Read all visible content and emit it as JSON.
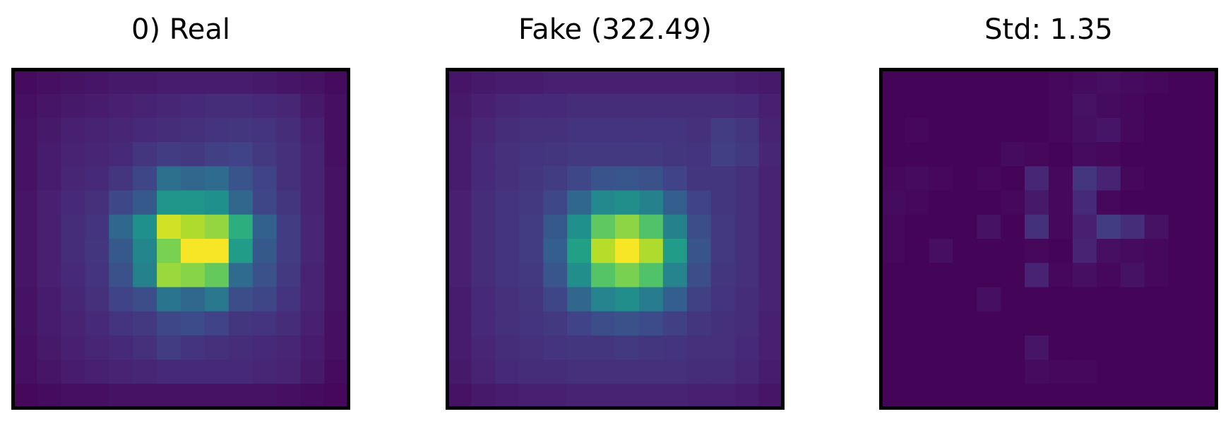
{
  "colors": {
    "colormap": "viridis",
    "frame": "#000000",
    "background": "#ffffff"
  },
  "chart_data": [
    {
      "type": "heatmap",
      "title": "0) Real",
      "colormap": "viridis",
      "vmin": 0,
      "vmax": 1,
      "grid": false,
      "values": [
        [
          0.03,
          0.04,
          0.05,
          0.06,
          0.07,
          0.07,
          0.08,
          0.08,
          0.08,
          0.08,
          0.07,
          0.06,
          0.05,
          0.03
        ],
        [
          0.04,
          0.06,
          0.07,
          0.08,
          0.09,
          0.1,
          0.11,
          0.12,
          0.13,
          0.13,
          0.12,
          0.11,
          0.07,
          0.04
        ],
        [
          0.05,
          0.07,
          0.09,
          0.1,
          0.11,
          0.12,
          0.13,
          0.14,
          0.15,
          0.16,
          0.15,
          0.13,
          0.09,
          0.04
        ],
        [
          0.05,
          0.08,
          0.1,
          0.11,
          0.12,
          0.16,
          0.18,
          0.17,
          0.19,
          0.2,
          0.17,
          0.14,
          0.1,
          0.04
        ],
        [
          0.05,
          0.08,
          0.11,
          0.12,
          0.16,
          0.21,
          0.37,
          0.33,
          0.35,
          0.26,
          0.2,
          0.14,
          0.1,
          0.05
        ],
        [
          0.06,
          0.09,
          0.12,
          0.14,
          0.22,
          0.28,
          0.52,
          0.52,
          0.5,
          0.33,
          0.21,
          0.16,
          0.1,
          0.05
        ],
        [
          0.06,
          0.09,
          0.13,
          0.15,
          0.34,
          0.5,
          0.93,
          0.88,
          0.84,
          0.63,
          0.31,
          0.18,
          0.11,
          0.05
        ],
        [
          0.06,
          0.09,
          0.13,
          0.16,
          0.28,
          0.46,
          0.8,
          0.99,
          0.99,
          0.55,
          0.28,
          0.18,
          0.11,
          0.05
        ],
        [
          0.06,
          0.09,
          0.12,
          0.15,
          0.25,
          0.44,
          0.85,
          0.82,
          0.76,
          0.35,
          0.25,
          0.17,
          0.1,
          0.05
        ],
        [
          0.05,
          0.08,
          0.11,
          0.14,
          0.2,
          0.24,
          0.39,
          0.34,
          0.4,
          0.24,
          0.21,
          0.15,
          0.1,
          0.05
        ],
        [
          0.05,
          0.08,
          0.1,
          0.12,
          0.15,
          0.17,
          0.22,
          0.23,
          0.2,
          0.16,
          0.15,
          0.13,
          0.09,
          0.04
        ],
        [
          0.04,
          0.07,
          0.09,
          0.11,
          0.12,
          0.14,
          0.18,
          0.15,
          0.14,
          0.13,
          0.12,
          0.11,
          0.08,
          0.04
        ],
        [
          0.04,
          0.06,
          0.08,
          0.09,
          0.1,
          0.11,
          0.12,
          0.12,
          0.12,
          0.12,
          0.11,
          0.1,
          0.07,
          0.03
        ],
        [
          0.02,
          0.03,
          0.04,
          0.04,
          0.05,
          0.05,
          0.05,
          0.05,
          0.05,
          0.05,
          0.05,
          0.04,
          0.03,
          0.02
        ]
      ]
    },
    {
      "type": "heatmap",
      "title": "Fake (322.49)",
      "colormap": "viridis",
      "vmin": 0,
      "vmax": 1,
      "grid": false,
      "values": [
        [
          0.06,
          0.07,
          0.08,
          0.08,
          0.09,
          0.09,
          0.09,
          0.09,
          0.09,
          0.09,
          0.09,
          0.09,
          0.08,
          0.07
        ],
        [
          0.07,
          0.09,
          0.11,
          0.12,
          0.12,
          0.13,
          0.13,
          0.13,
          0.13,
          0.13,
          0.13,
          0.13,
          0.12,
          0.09
        ],
        [
          0.08,
          0.11,
          0.13,
          0.14,
          0.14,
          0.15,
          0.15,
          0.15,
          0.15,
          0.15,
          0.14,
          0.18,
          0.16,
          0.1
        ],
        [
          0.08,
          0.12,
          0.14,
          0.15,
          0.16,
          0.17,
          0.17,
          0.17,
          0.17,
          0.16,
          0.15,
          0.19,
          0.17,
          0.11
        ],
        [
          0.08,
          0.12,
          0.14,
          0.16,
          0.18,
          0.22,
          0.26,
          0.27,
          0.25,
          0.2,
          0.16,
          0.16,
          0.14,
          0.1
        ],
        [
          0.09,
          0.13,
          0.15,
          0.17,
          0.22,
          0.34,
          0.47,
          0.49,
          0.44,
          0.3,
          0.2,
          0.16,
          0.14,
          0.1
        ],
        [
          0.09,
          0.13,
          0.15,
          0.18,
          0.28,
          0.5,
          0.75,
          0.83,
          0.72,
          0.44,
          0.24,
          0.17,
          0.14,
          0.1
        ],
        [
          0.09,
          0.13,
          0.15,
          0.18,
          0.3,
          0.57,
          0.89,
          0.99,
          0.88,
          0.55,
          0.26,
          0.17,
          0.14,
          0.1
        ],
        [
          0.09,
          0.13,
          0.15,
          0.17,
          0.27,
          0.49,
          0.73,
          0.8,
          0.72,
          0.45,
          0.24,
          0.16,
          0.14,
          0.1
        ],
        [
          0.08,
          0.12,
          0.14,
          0.16,
          0.21,
          0.33,
          0.45,
          0.49,
          0.42,
          0.3,
          0.19,
          0.15,
          0.13,
          0.1
        ],
        [
          0.08,
          0.12,
          0.14,
          0.15,
          0.17,
          0.2,
          0.24,
          0.25,
          0.23,
          0.19,
          0.16,
          0.14,
          0.13,
          0.09
        ],
        [
          0.08,
          0.11,
          0.13,
          0.14,
          0.15,
          0.16,
          0.16,
          0.17,
          0.16,
          0.15,
          0.14,
          0.14,
          0.12,
          0.09
        ],
        [
          0.07,
          0.1,
          0.12,
          0.13,
          0.13,
          0.14,
          0.14,
          0.14,
          0.14,
          0.14,
          0.13,
          0.13,
          0.11,
          0.08
        ],
        [
          0.05,
          0.07,
          0.08,
          0.09,
          0.09,
          0.1,
          0.1,
          0.1,
          0.1,
          0.1,
          0.09,
          0.09,
          0.08,
          0.06
        ]
      ]
    },
    {
      "type": "heatmap",
      "title": "Std: 1.35",
      "colormap": "viridis",
      "vmin": 0,
      "vmax": 1,
      "grid": false,
      "values": [
        [
          0.01,
          0.01,
          0.01,
          0.01,
          0.01,
          0.01,
          0.01,
          0.02,
          0.03,
          0.04,
          0.03,
          0.02,
          0.01,
          0.01
        ],
        [
          0.01,
          0.01,
          0.01,
          0.01,
          0.01,
          0.01,
          0.01,
          0.02,
          0.05,
          0.03,
          0.02,
          0.01,
          0.01,
          0.01
        ],
        [
          0.01,
          0.02,
          0.01,
          0.01,
          0.01,
          0.01,
          0.01,
          0.02,
          0.04,
          0.06,
          0.02,
          0.01,
          0.01,
          0.01
        ],
        [
          0.01,
          0.01,
          0.01,
          0.01,
          0.01,
          0.03,
          0.02,
          0.01,
          0.03,
          0.02,
          0.01,
          0.01,
          0.01,
          0.01
        ],
        [
          0.02,
          0.03,
          0.02,
          0.01,
          0.02,
          0.01,
          0.11,
          0.02,
          0.16,
          0.1,
          0.02,
          0.01,
          0.01,
          0.01
        ],
        [
          0.03,
          0.02,
          0.01,
          0.01,
          0.01,
          0.02,
          0.07,
          0.02,
          0.12,
          0.02,
          0.01,
          0.01,
          0.01,
          0.01
        ],
        [
          0.02,
          0.01,
          0.01,
          0.01,
          0.05,
          0.01,
          0.14,
          0.02,
          0.09,
          0.18,
          0.13,
          0.05,
          0.01,
          0.01
        ],
        [
          0.02,
          0.01,
          0.04,
          0.01,
          0.01,
          0.01,
          0.02,
          0.01,
          0.1,
          0.04,
          0.03,
          0.02,
          0.01,
          0.01
        ],
        [
          0.01,
          0.01,
          0.01,
          0.01,
          0.01,
          0.01,
          0.1,
          0.02,
          0.04,
          0.02,
          0.05,
          0.02,
          0.01,
          0.01
        ],
        [
          0.01,
          0.01,
          0.01,
          0.01,
          0.04,
          0.01,
          0.01,
          0.01,
          0.01,
          0.01,
          0.01,
          0.01,
          0.01,
          0.01
        ],
        [
          0.01,
          0.01,
          0.01,
          0.01,
          0.01,
          0.01,
          0.01,
          0.01,
          0.01,
          0.01,
          0.01,
          0.01,
          0.01,
          0.01
        ],
        [
          0.01,
          0.01,
          0.01,
          0.01,
          0.01,
          0.01,
          0.06,
          0.01,
          0.01,
          0.01,
          0.01,
          0.01,
          0.01,
          0.01
        ],
        [
          0.01,
          0.01,
          0.01,
          0.01,
          0.01,
          0.01,
          0.03,
          0.02,
          0.02,
          0.01,
          0.01,
          0.01,
          0.01,
          0.01
        ],
        [
          0.01,
          0.01,
          0.01,
          0.01,
          0.01,
          0.01,
          0.01,
          0.01,
          0.01,
          0.01,
          0.01,
          0.01,
          0.01,
          0.01
        ]
      ]
    }
  ]
}
